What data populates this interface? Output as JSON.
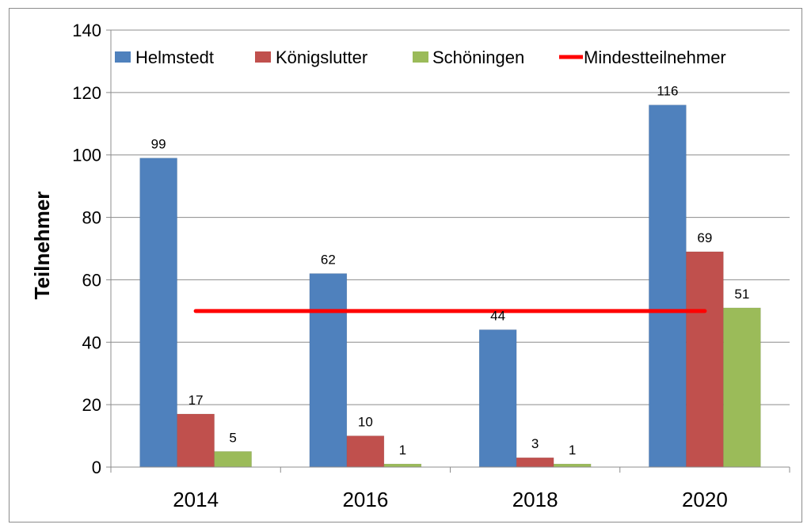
{
  "chart_data": {
    "type": "bar",
    "categories": [
      "2014",
      "2016",
      "2018",
      "2020"
    ],
    "series": [
      {
        "name": "Helmstedt",
        "values": [
          99,
          62,
          44,
          116
        ],
        "color": "#4f81bd",
        "data_labels": [
          "99",
          "62",
          "44",
          "116"
        ]
      },
      {
        "name": "Königslutter",
        "values": [
          17,
          10,
          3,
          69
        ],
        "color": "#c0504d",
        "data_labels": [
          "17",
          "10",
          "3",
          "69"
        ]
      },
      {
        "name": "Schöningen",
        "values": [
          5,
          1,
          1,
          51
        ],
        "color": "#9bbb59",
        "data_labels": [
          "5",
          "1",
          "1",
          "51"
        ]
      }
    ],
    "reference_line": {
      "name": "Mindestteilnehmer",
      "value": 50,
      "color": "#ff0000",
      "from_category": "2014",
      "to_category": "2020"
    },
    "title": "",
    "xlabel": "",
    "ylabel": "Teilnehmer",
    "ylim": [
      0,
      140
    ],
    "yticks": [
      0,
      20,
      40,
      60,
      80,
      100,
      120,
      140
    ],
    "ytick_labels": [
      "0",
      "20",
      "40",
      "60",
      "80",
      "100",
      "120",
      "140"
    ],
    "grid": true,
    "legend_position": "top"
  }
}
